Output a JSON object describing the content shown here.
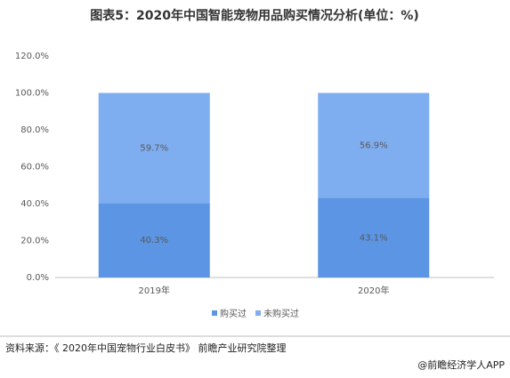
{
  "chart_data": {
    "type": "stacked_bar",
    "title": "图表5：2020年中国智能宠物用品购买情况分析(单位：%)",
    "categories": [
      "2019年",
      "2020年"
    ],
    "series": [
      {
        "name": "购买过",
        "color": "#5b95e3",
        "values": [
          40.3,
          43.1
        ],
        "value_labels": [
          "40.3%",
          "43.1%"
        ]
      },
      {
        "name": "未购买过",
        "color": "#7eadf0",
        "values": [
          59.7,
          56.9
        ],
        "value_labels": [
          "59.7%",
          "56.9%"
        ]
      }
    ],
    "ylim": [
      0,
      120
    ],
    "yticks": [
      {
        "value": 0,
        "label": "0.0%"
      },
      {
        "value": 20,
        "label": "20.0%"
      },
      {
        "value": 40,
        "label": "40.0%"
      },
      {
        "value": 60,
        "label": "60.0%"
      },
      {
        "value": 80,
        "label": "80.0%"
      },
      {
        "value": 100,
        "label": "100.0%"
      },
      {
        "value": 120,
        "label": "120.0%"
      }
    ],
    "grid": false,
    "legend": "bottom",
    "source": "资料来源：《 2020年中国宠物行业白皮书》 前瞻产业研究院整理",
    "credit": "@前瞻经济学人APP"
  }
}
